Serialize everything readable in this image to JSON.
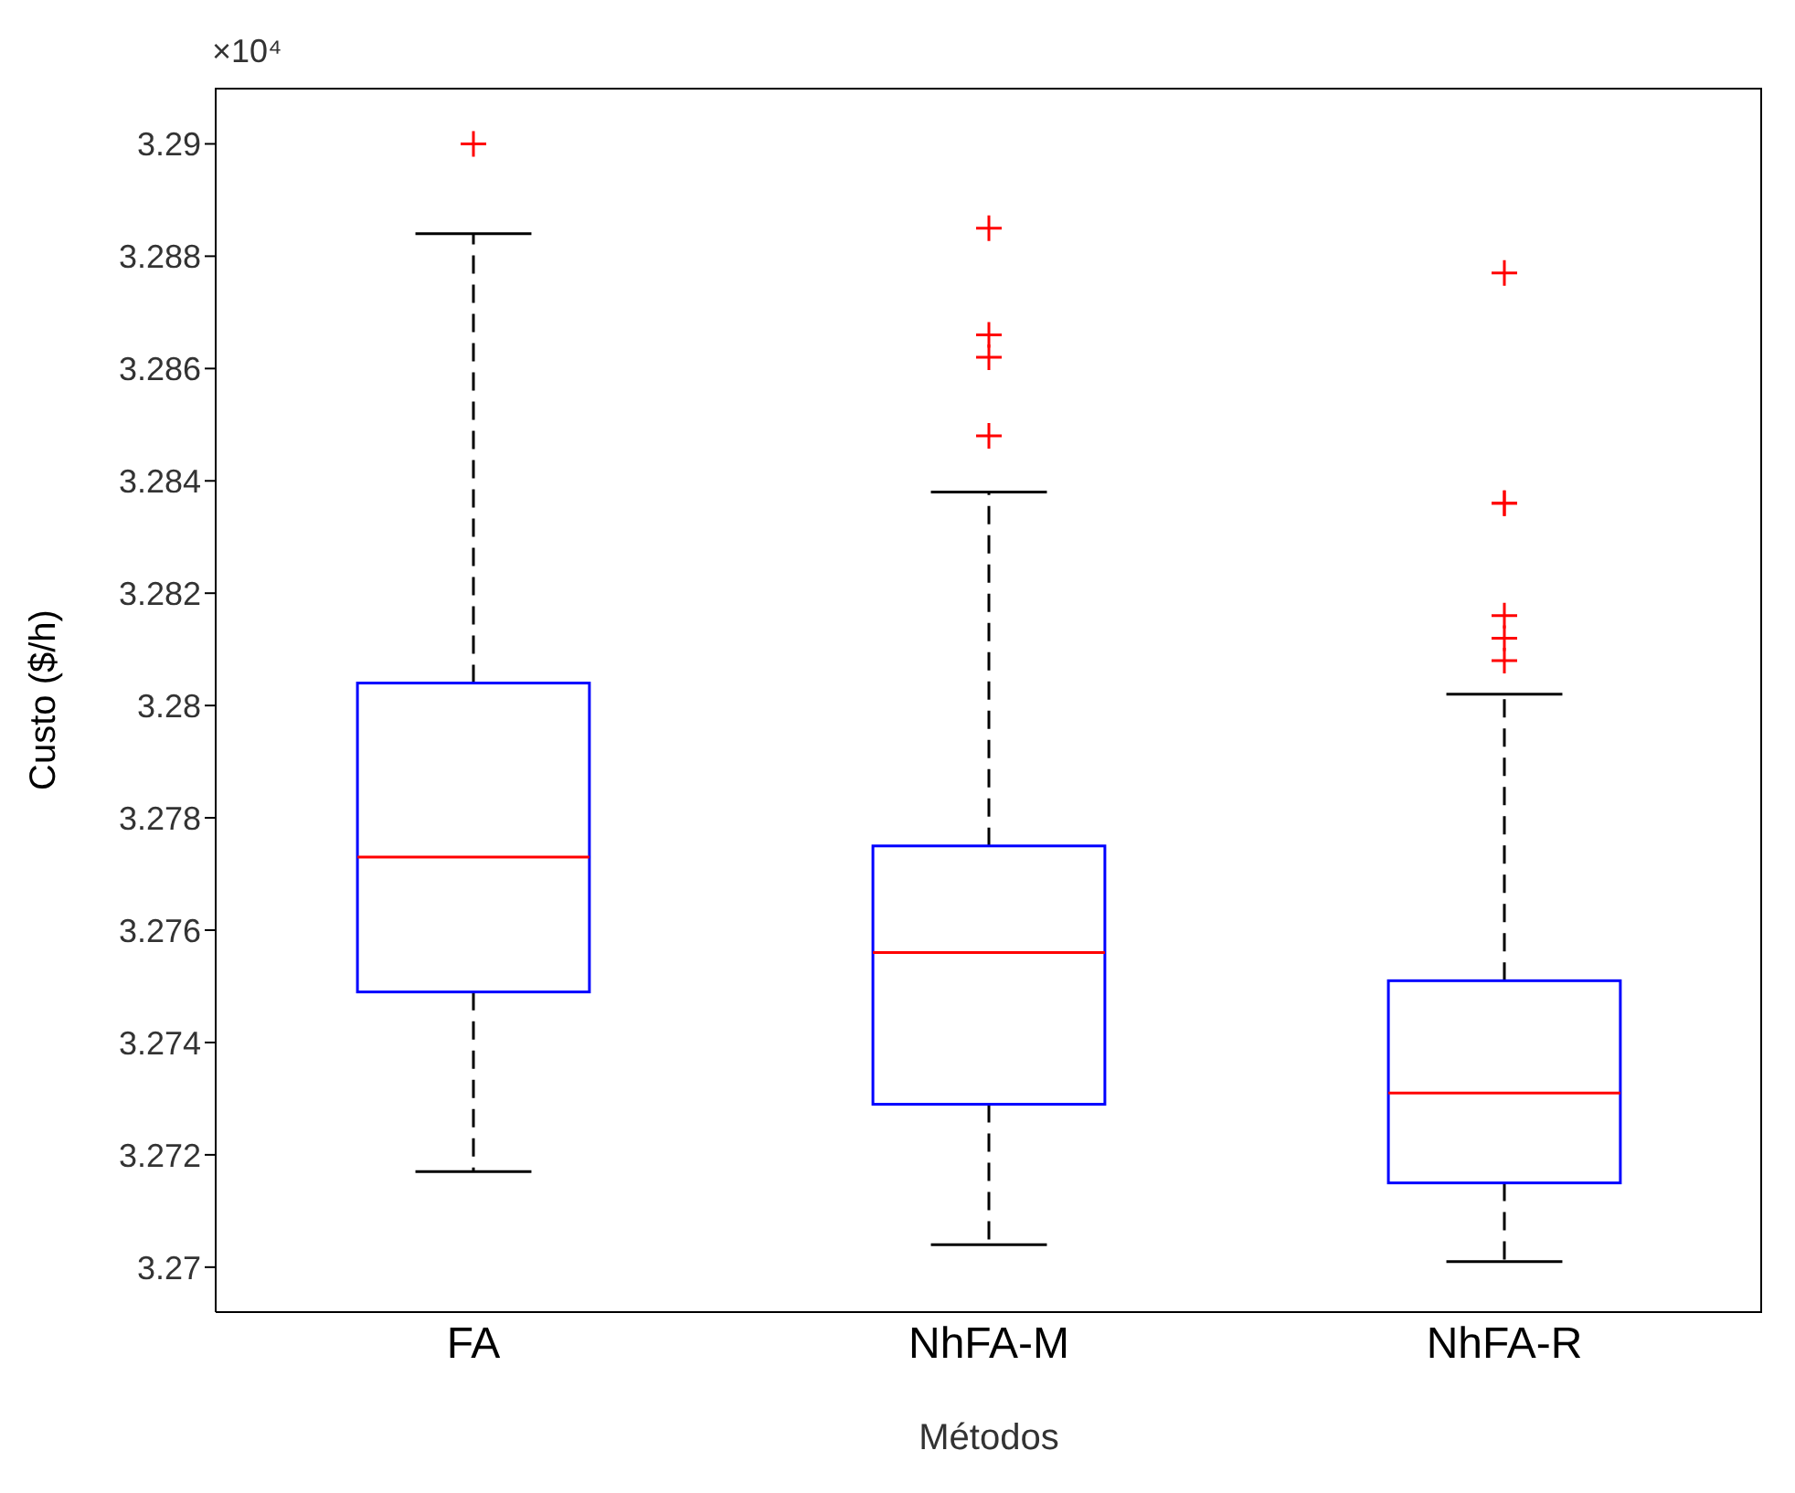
{
  "chart_data": {
    "type": "box",
    "xlabel": "Métodos",
    "ylabel": "Custo ($/h)",
    "annotations": [
      "×10⁴"
    ],
    "categories": [
      "FA",
      "NhFA-M",
      "NhFA-R"
    ],
    "ylim": [
      3.2692,
      3.291
    ],
    "yticks": [
      3.27,
      3.272,
      3.274,
      3.276,
      3.278,
      3.28,
      3.282,
      3.284,
      3.286,
      3.288,
      3.29
    ],
    "marker": "cross",
    "series": [
      {
        "color": "#0000ff",
        "boxes": [
          {
            "low": 3.2717,
            "q1": 3.2749,
            "median": 3.2773,
            "q3": 3.2804,
            "high": 3.2884,
            "outliers": [
              3.29
            ]
          },
          {
            "low": 3.2704,
            "q1": 3.2729,
            "median": 3.2756,
            "q3": 3.2775,
            "high": 3.2838,
            "outliers": [
              3.2885,
              3.2866,
              3.2862,
              3.2848
            ]
          },
          {
            "low": 3.2701,
            "q1": 3.2715,
            "median": 3.2731,
            "q3": 3.2751,
            "high": 3.2802,
            "outliers": [
              3.2877,
              3.2836,
              3.2836,
              3.2816,
              3.2812,
              3.2808
            ]
          }
        ]
      }
    ]
  }
}
